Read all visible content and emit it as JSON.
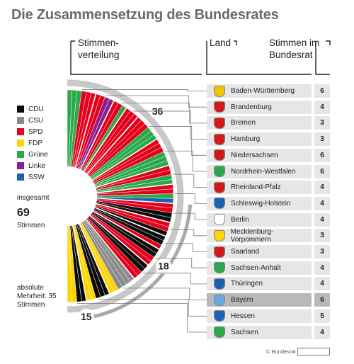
{
  "title": "Die Zusammensetzung des Bundesrates",
  "headers": {
    "stimmenverteilung": "Stimmen-\nverteilung",
    "land": "Land",
    "stimmen": "Stimmen im\nBundesrat"
  },
  "legend": [
    {
      "name": "CDU",
      "color": "#0b0b0b"
    },
    {
      "name": "CSU",
      "color": "#8a8a8a"
    },
    {
      "name": "SPD",
      "color": "#e3001b"
    },
    {
      "name": "FDP",
      "color": "#ffd400"
    },
    {
      "name": "Grüne",
      "color": "#2aa84a"
    },
    {
      "name": "Linke",
      "color": "#8e1d8c"
    },
    {
      "name": "SSW",
      "color": "#1b62b3"
    }
  ],
  "total": {
    "label": "insgesamt",
    "value": "69",
    "unit": "Stimmen"
  },
  "majority_label": "absolute Mehrheit: 35 Stimmen",
  "arc_labels": {
    "top": "36",
    "middle": "18",
    "bottom": "15"
  },
  "footer": {
    "copyright": "© Bundesrat"
  },
  "chart_data": {
    "type": "pie",
    "total_seats": 69,
    "majority": 35,
    "states": [
      {
        "land": "Baden-Württemberg",
        "seats": 6,
        "crest_color": "#f2c400",
        "parties": [
          "Grüne",
          "Grüne",
          "Grüne",
          "SPD",
          "SPD",
          "SPD"
        ]
      },
      {
        "land": "Brandenburg",
        "seats": 4,
        "crest_color": "#d01a1a",
        "parties": [
          "SPD",
          "SPD",
          "Linke",
          "Linke"
        ]
      },
      {
        "land": "Bremen",
        "seats": 3,
        "crest_color": "#d01a1a",
        "parties": [
          "SPD",
          "SPD",
          "Grüne"
        ]
      },
      {
        "land": "Hamburg",
        "seats": 3,
        "crest_color": "#d01a1a",
        "parties": [
          "SPD",
          "SPD",
          "SPD"
        ]
      },
      {
        "land": "Niedersachsen",
        "seats": 6,
        "crest_color": "#d01a1a",
        "parties": [
          "SPD",
          "SPD",
          "SPD",
          "Grüne",
          "Grüne",
          "Grüne"
        ]
      },
      {
        "land": "Nordrhein-Westfalen",
        "seats": 6,
        "crest_color": "#2aa84a",
        "parties": [
          "SPD",
          "SPD",
          "SPD",
          "Grüne",
          "Grüne",
          "Grüne"
        ]
      },
      {
        "land": "Rheinland-Pfalz",
        "seats": 4,
        "crest_color": "#d01a1a",
        "parties": [
          "SPD",
          "SPD",
          "Grüne",
          "Grüne"
        ]
      },
      {
        "land": "Schleswig-Holstein",
        "seats": 4,
        "crest_color": "#1b62b3",
        "parties": [
          "SPD",
          "SPD",
          "Grüne",
          "SSW"
        ]
      },
      {
        "land": "Berlin",
        "seats": 4,
        "crest_color": "#ffffff",
        "parties": [
          "SPD",
          "SPD",
          "CDU",
          "CDU"
        ]
      },
      {
        "land": "Mecklenburg-Vorpommern",
        "seats": 3,
        "crest_color": "#ffd400",
        "parties": [
          "SPD",
          "SPD",
          "CDU"
        ]
      },
      {
        "land": "Saarland",
        "seats": 3,
        "crest_color": "#d01a1a",
        "parties": [
          "CDU",
          "CDU",
          "SPD"
        ]
      },
      {
        "land": "Sachsen-Anhalt",
        "seats": 4,
        "crest_color": "#2aa84a",
        "parties": [
          "CDU",
          "CDU",
          "SPD",
          "SPD"
        ]
      },
      {
        "land": "Thüringen",
        "seats": 4,
        "crest_color": "#1b62b3",
        "parties": [
          "CDU",
          "CDU",
          "SPD",
          "SPD"
        ]
      },
      {
        "land": "Bayern",
        "seats": 6,
        "crest_color": "#6aa6e0",
        "parties": [
          "CSU",
          "CSU",
          "CSU",
          "CSU",
          "FDP",
          "FDP"
        ]
      },
      {
        "land": "Hessen",
        "seats": 5,
        "crest_color": "#1b62b3",
        "parties": [
          "CDU",
          "CDU",
          "CDU",
          "FDP",
          "FDP"
        ]
      },
      {
        "land": "Sachsen",
        "seats": 4,
        "crest_color": "#2aa84a",
        "parties": [
          "CDU",
          "CDU",
          "FDP",
          "FDP"
        ]
      }
    ]
  }
}
